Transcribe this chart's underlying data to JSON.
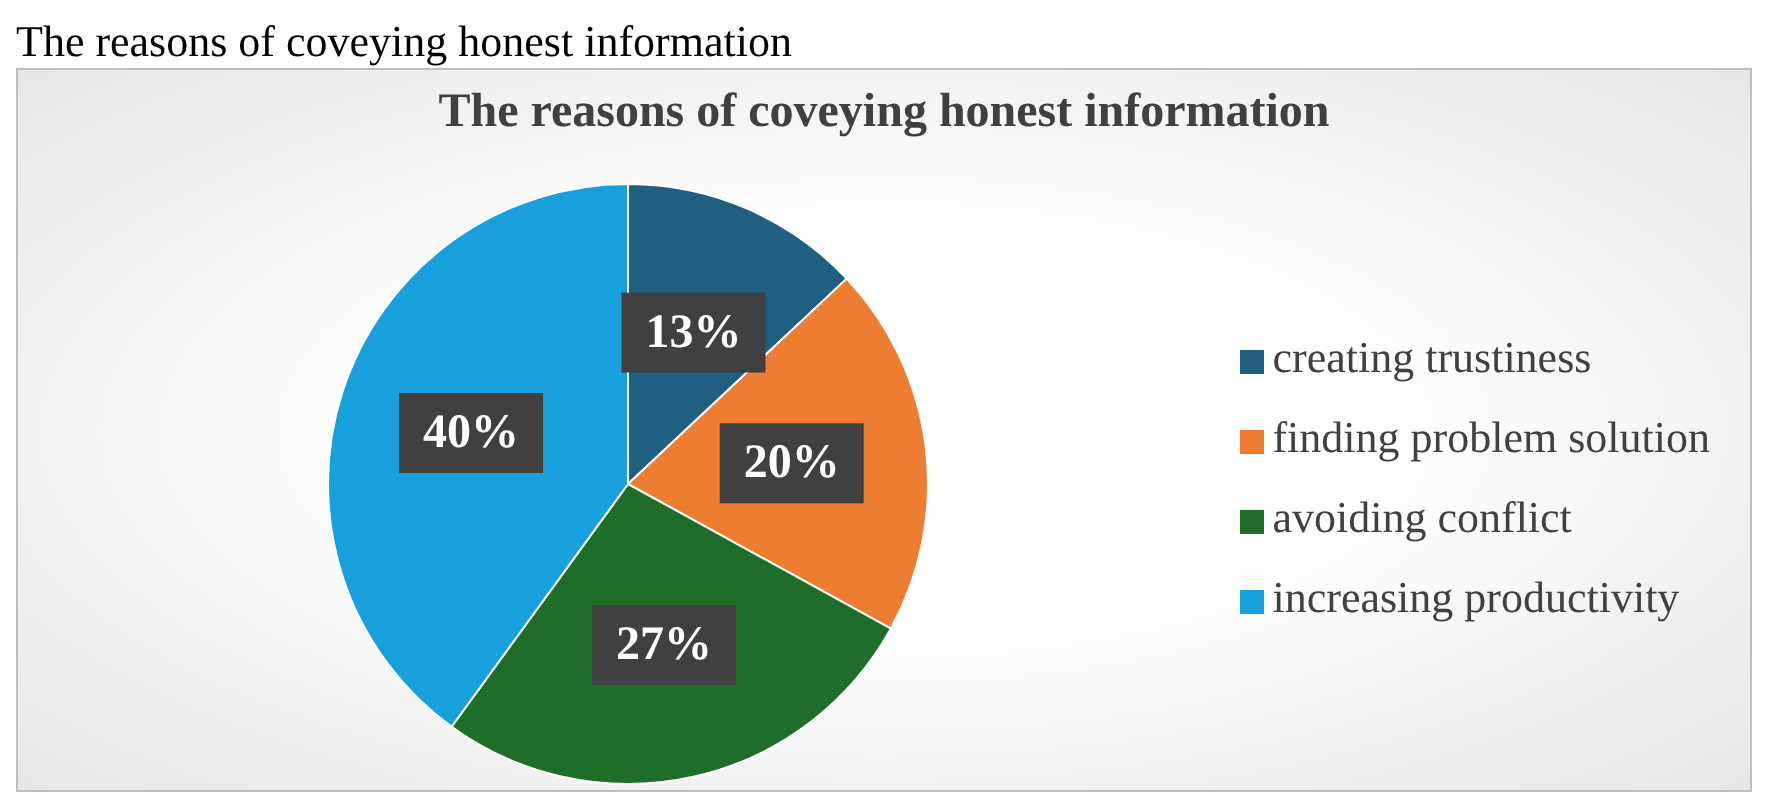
{
  "chart_data": {
    "type": "pie",
    "title": "The reasons of coveying honest information",
    "annotations": [
      "The reasons of coveying honest information"
    ],
    "categories": [
      "creating trustiness",
      "finding problem solution",
      "avoiding conflict",
      "increasing productivity"
    ],
    "values": [
      13,
      20,
      27,
      40
    ],
    "colors": [
      "#1f5f80",
      "#ed7d31",
      "#1e6e2a",
      "#17a0db"
    ],
    "value_labels": [
      "13%",
      "20%",
      "27%",
      "40%"
    ],
    "legend": "right"
  }
}
